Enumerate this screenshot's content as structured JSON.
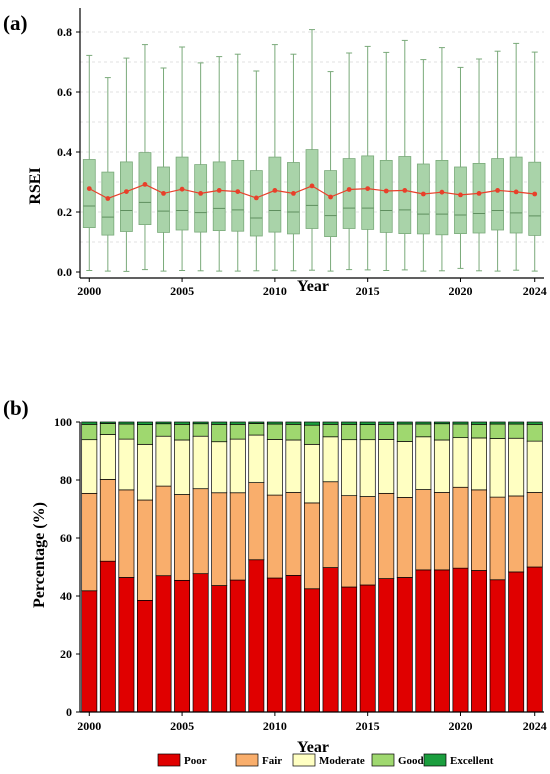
{
  "chart_data": [
    {
      "type": "box",
      "panel_label": "(a)",
      "xlabel": "Year",
      "ylabel": "RSEI",
      "xlim": [
        1999.5,
        2024.5
      ],
      "ylim": [
        -0.02,
        0.88
      ],
      "xticks": [
        "2000",
        "2005",
        "2010",
        "2015",
        "2020",
        "2024"
      ],
      "yticks": [
        "0.0",
        "0.2",
        "0.4",
        "0.6",
        "0.8"
      ],
      "grid": "horizontal dashed",
      "colors": {
        "box": "#a9d3a9",
        "box_edge": "#7aaa7a",
        "mean": "#e8402a"
      },
      "years": [
        2000,
        2001,
        2002,
        2003,
        2004,
        2005,
        2006,
        2007,
        2008,
        2009,
        2010,
        2011,
        2012,
        2013,
        2014,
        2015,
        2016,
        2017,
        2018,
        2019,
        2020,
        2021,
        2022,
        2023,
        2024
      ],
      "whisker_low": [
        0.005,
        0.003,
        0.002,
        0.008,
        0.003,
        0.005,
        0.004,
        0.003,
        0.003,
        0.004,
        0.006,
        0.004,
        0.006,
        0.003,
        0.008,
        0.007,
        0.005,
        0.007,
        0.003,
        0.004,
        0.012,
        0.004,
        0.003,
        0.006,
        0.003
      ],
      "q1": [
        0.148,
        0.123,
        0.135,
        0.158,
        0.132,
        0.14,
        0.133,
        0.138,
        0.136,
        0.12,
        0.133,
        0.127,
        0.145,
        0.118,
        0.145,
        0.142,
        0.132,
        0.128,
        0.127,
        0.124,
        0.128,
        0.13,
        0.14,
        0.13,
        0.122
      ],
      "median": [
        0.22,
        0.183,
        0.205,
        0.232,
        0.203,
        0.205,
        0.198,
        0.212,
        0.207,
        0.18,
        0.205,
        0.2,
        0.222,
        0.188,
        0.213,
        0.213,
        0.205,
        0.207,
        0.193,
        0.193,
        0.19,
        0.195,
        0.205,
        0.197,
        0.187
      ],
      "q3": [
        0.375,
        0.333,
        0.367,
        0.398,
        0.35,
        0.383,
        0.358,
        0.367,
        0.372,
        0.338,
        0.383,
        0.365,
        0.408,
        0.338,
        0.378,
        0.387,
        0.372,
        0.385,
        0.36,
        0.372,
        0.35,
        0.362,
        0.378,
        0.383,
        0.366
      ],
      "whisker_high": [
        0.722,
        0.648,
        0.713,
        0.758,
        0.68,
        0.75,
        0.697,
        0.718,
        0.726,
        0.67,
        0.758,
        0.726,
        0.808,
        0.668,
        0.73,
        0.752,
        0.732,
        0.772,
        0.708,
        0.748,
        0.682,
        0.71,
        0.736,
        0.762,
        0.733
      ],
      "mean": [
        0.278,
        0.245,
        0.268,
        0.292,
        0.262,
        0.276,
        0.262,
        0.272,
        0.268,
        0.247,
        0.272,
        0.262,
        0.287,
        0.25,
        0.275,
        0.278,
        0.27,
        0.272,
        0.26,
        0.266,
        0.257,
        0.262,
        0.272,
        0.267,
        0.26
      ]
    },
    {
      "type": "bar",
      "stacked": true,
      "panel_label": "(b)",
      "xlabel": "Year",
      "ylabel": "Percentage (%)",
      "ylim": [
        0,
        100
      ],
      "xticks": [
        "2000",
        "2005",
        "2010",
        "2015",
        "2020",
        "2024"
      ],
      "yticks": [
        "0",
        "20",
        "40",
        "60",
        "80",
        "100"
      ],
      "legend": "bottom",
      "categories": [
        2000,
        2001,
        2002,
        2003,
        2004,
        2005,
        2006,
        2007,
        2008,
        2009,
        2010,
        2011,
        2012,
        2013,
        2014,
        2015,
        2016,
        2017,
        2018,
        2019,
        2020,
        2021,
        2022,
        2023,
        2024
      ],
      "series": [
        {
          "name": "Poor",
          "color": "#e00000",
          "values": [
            41.8,
            52.0,
            46.4,
            38.5,
            47.0,
            45.4,
            47.7,
            43.6,
            45.5,
            52.5,
            46.2,
            47.1,
            42.5,
            49.8,
            43.1,
            43.8,
            46.0,
            46.4,
            49.0,
            49.0,
            49.6,
            48.8,
            45.6,
            48.3,
            50.0
          ]
        },
        {
          "name": "Fair",
          "color": "#f9ae6c",
          "values": [
            33.6,
            28.2,
            30.2,
            34.6,
            30.9,
            29.6,
            29.3,
            32.0,
            30.1,
            26.6,
            28.6,
            28.6,
            29.6,
            29.6,
            31.5,
            30.5,
            29.4,
            27.6,
            27.7,
            26.7,
            27.9,
            27.8,
            28.5,
            26.2,
            25.7
          ]
        },
        {
          "name": "Moderate",
          "color": "#ffffc2",
          "values": [
            18.5,
            15.5,
            17.5,
            19.2,
            17.2,
            18.8,
            18.1,
            17.6,
            18.5,
            16.4,
            19.2,
            18.1,
            20.2,
            15.5,
            19.3,
            19.6,
            18.6,
            19.3,
            18.2,
            18.1,
            17.1,
            17.9,
            20.2,
            19.9,
            17.7
          ]
        },
        {
          "name": "Good",
          "color": "#9fd86f",
          "values": [
            5.3,
            3.8,
            5.2,
            6.8,
            4.3,
            5.4,
            4.3,
            6.0,
            5.1,
            4.0,
            5.3,
            5.4,
            6.6,
            4.3,
            5.3,
            5.2,
            5.2,
            6.0,
            4.4,
            5.6,
            4.7,
            4.7,
            5.0,
            4.9,
            5.8
          ]
        },
        {
          "name": "Excellent",
          "color": "#1b9e3e",
          "values": [
            0.8,
            0.5,
            0.7,
            0.9,
            0.6,
            0.8,
            0.6,
            0.8,
            0.8,
            0.5,
            0.7,
            0.8,
            1.1,
            0.8,
            0.8,
            0.9,
            0.8,
            0.7,
            0.7,
            0.6,
            0.7,
            0.8,
            0.7,
            0.7,
            0.8
          ]
        }
      ]
    }
  ]
}
